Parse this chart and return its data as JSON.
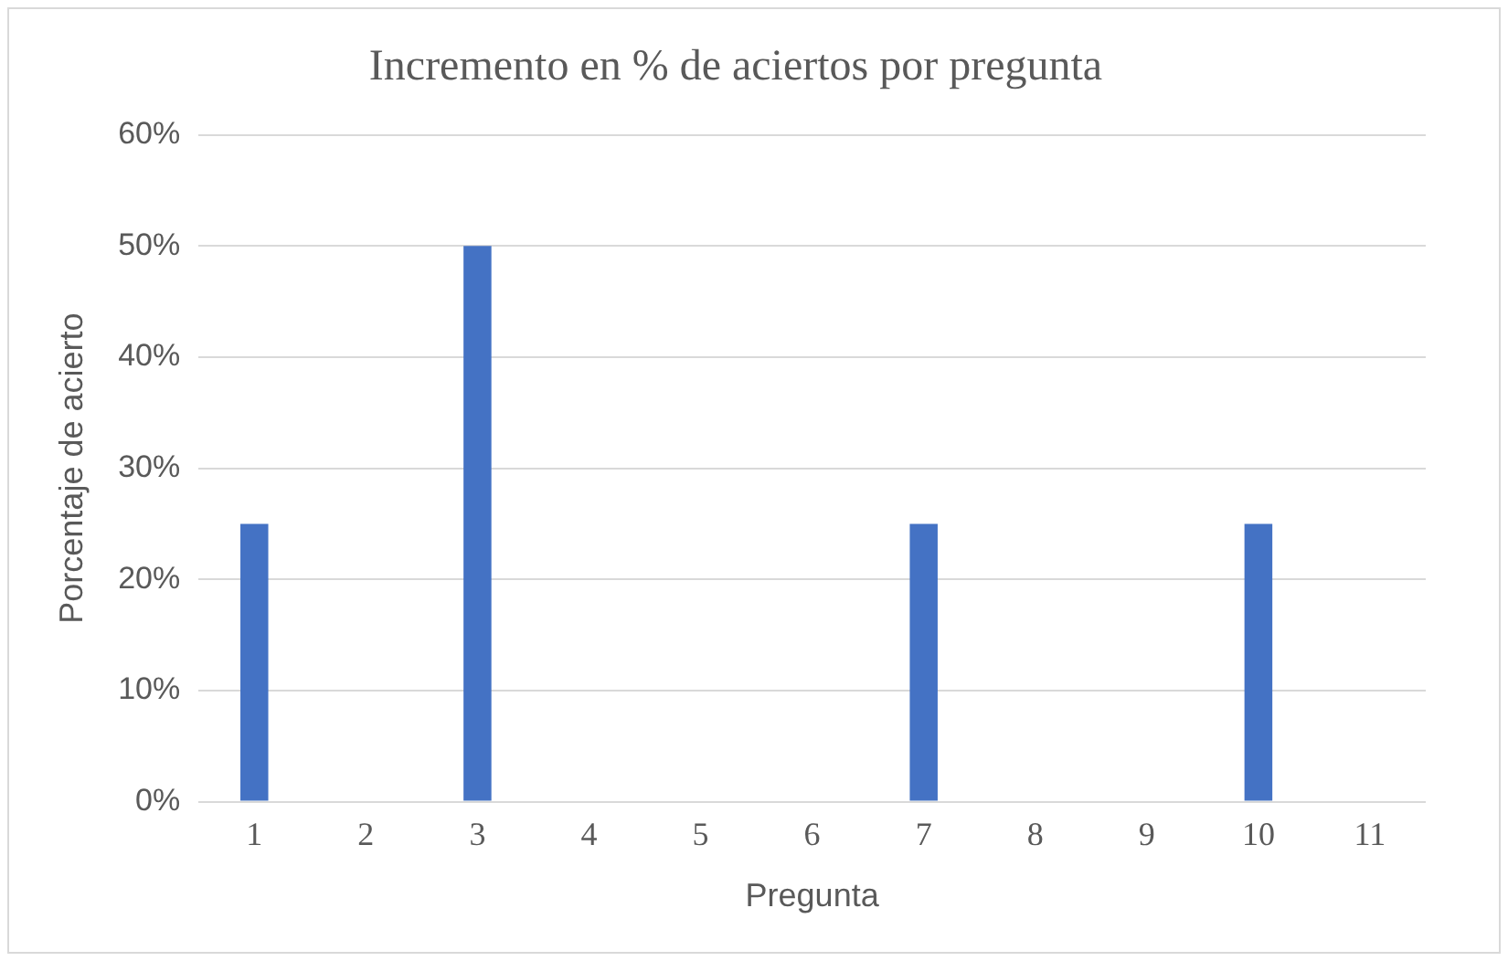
{
  "chart_data": {
    "type": "bar",
    "title": "Incremento en % de aciertos por pregunta",
    "xlabel": "Pregunta",
    "ylabel": "Porcentaje de acierto",
    "categories": [
      "1",
      "2",
      "3",
      "4",
      "5",
      "6",
      "7",
      "8",
      "9",
      "10",
      "11"
    ],
    "values": [
      25,
      0,
      50,
      0,
      0,
      0,
      25,
      0,
      0,
      25,
      0
    ],
    "color": "#4472c4",
    "ylim": [
      0,
      60
    ],
    "yticks": [
      {
        "value": 0,
        "label": "0%"
      },
      {
        "value": 10,
        "label": "10%"
      },
      {
        "value": 20,
        "label": "20%"
      },
      {
        "value": 30,
        "label": "30%"
      },
      {
        "value": 40,
        "label": "40%"
      },
      {
        "value": 50,
        "label": "50%"
      },
      {
        "value": 60,
        "label": "60%"
      }
    ],
    "grid": "y"
  }
}
